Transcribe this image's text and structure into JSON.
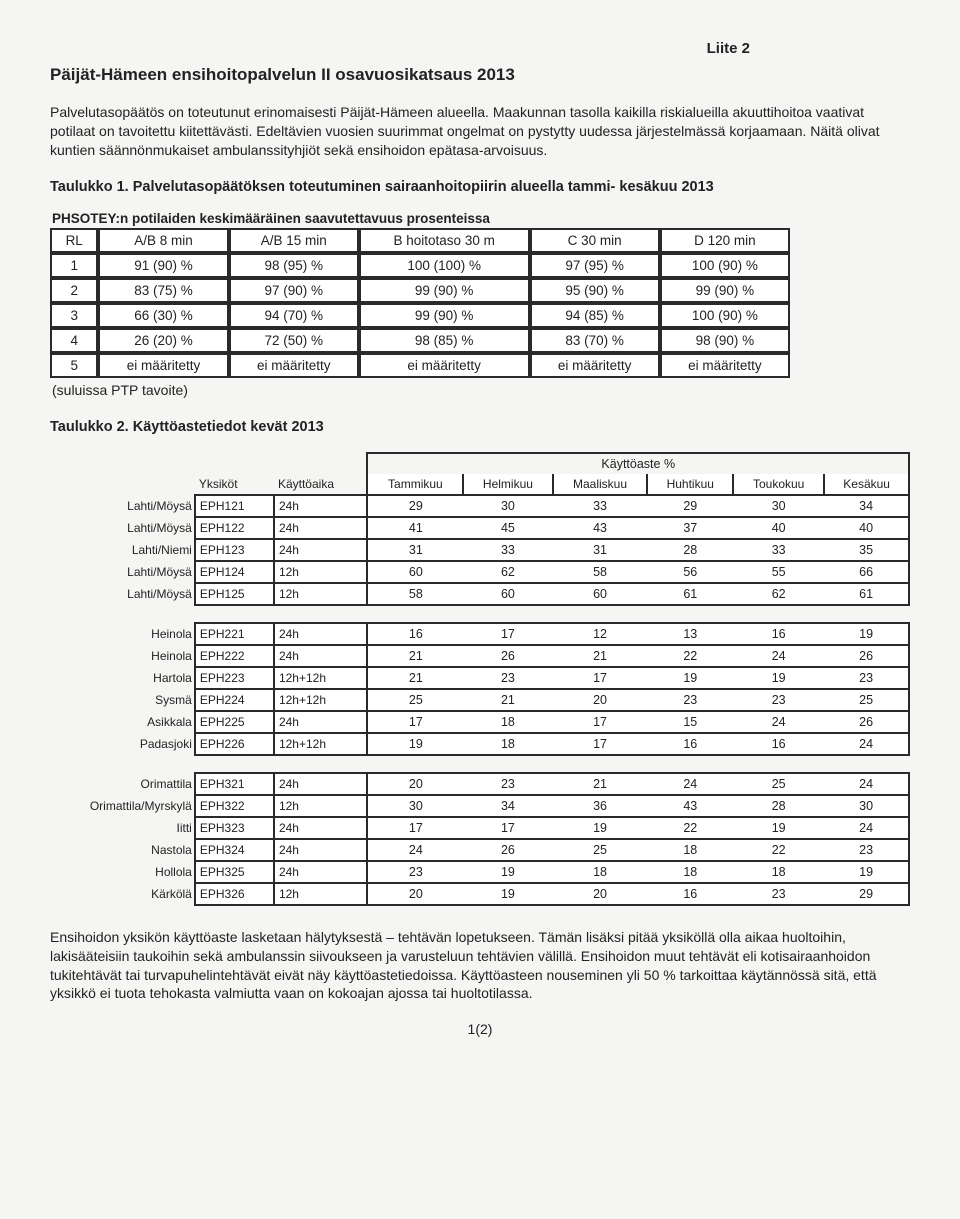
{
  "header_label": "Liite 2",
  "title": "Päijät-Hämeen ensihoitopalvelun II osavuosikatsaus 2013",
  "intro": "Palvelutasopäätös on toteutunut erinomaisesti Päijät-Hämeen alueella. Maakunnan tasolla kaikilla riskialueilla akuuttihoitoa vaativat potilaat on tavoitettu kiitettävästi. Edeltävien vuosien suurimmat ongelmat on pystytty uudessa järjestelmässä korjaamaan. Näitä olivat kuntien säännönmukaiset ambulanssityhjiöt sekä ensihoidon epätasa-arvoisuus.",
  "table1": {
    "caption": "Taulukko 1. Palvelutasopäätöksen toteutuminen sairaanhoitopiirin alueella tammi- kesäkuu 2013",
    "subcaption": "PHSOTEY:n potilaiden keskimääräinen saavutettavuus prosenteissa",
    "columns": [
      "RL",
      "A/B 8 min",
      "A/B 15 min",
      "B hoitotaso 30 m",
      "C 30 min",
      "D 120 min"
    ],
    "rows": [
      [
        "1",
        "91 (90) %",
        "98 (95) %",
        "100 (100) %",
        "97 (95) %",
        "100 (90) %"
      ],
      [
        "2",
        "83 (75) %",
        "97 (90) %",
        "99 (90) %",
        "95 (90) %",
        "99 (90) %"
      ],
      [
        "3",
        "66 (30) %",
        "94 (70) %",
        "99 (90) %",
        "94 (85) %",
        "100 (90) %"
      ],
      [
        "4",
        "26 (20) %",
        "72 (50) %",
        "98 (85) %",
        "83 (70) %",
        "98 (90) %"
      ],
      [
        "5",
        "ei määritetty",
        "ei määritetty",
        "ei määritetty",
        "ei määritetty",
        "ei määritetty"
      ]
    ],
    "note": "(suluissa PTP tavoite)"
  },
  "table2": {
    "caption": "Taulukko 2. Käyttöastetiedot kevät 2013",
    "group_header": "Käyttöaste %",
    "col_labels": [
      "Yksiköt",
      "Käyttöaika",
      "Tammikuu",
      "Helmikuu",
      "Maaliskuu",
      "Huhtikuu",
      "Toukokuu",
      "Kesäkuu"
    ],
    "groups": [
      [
        {
          "loc": "Lahti/Möysä",
          "unit": "EPH121",
          "time": "24h",
          "v": [
            "29",
            "30",
            "33",
            "29",
            "30",
            "34"
          ]
        },
        {
          "loc": "Lahti/Möysä",
          "unit": "EPH122",
          "time": "24h",
          "v": [
            "41",
            "45",
            "43",
            "37",
            "40",
            "40"
          ]
        },
        {
          "loc": "Lahti/Niemi",
          "unit": "EPH123",
          "time": "24h",
          "v": [
            "31",
            "33",
            "31",
            "28",
            "33",
            "35"
          ]
        },
        {
          "loc": "Lahti/Möysä",
          "unit": "EPH124",
          "time": "12h",
          "v": [
            "60",
            "62",
            "58",
            "56",
            "55",
            "66"
          ]
        },
        {
          "loc": "Lahti/Möysä",
          "unit": "EPH125",
          "time": "12h",
          "v": [
            "58",
            "60",
            "60",
            "61",
            "62",
            "61"
          ]
        }
      ],
      [
        {
          "loc": "Heinola",
          "unit": "EPH221",
          "time": "24h",
          "v": [
            "16",
            "17",
            "12",
            "13",
            "16",
            "19"
          ]
        },
        {
          "loc": "Heinola",
          "unit": "EPH222",
          "time": "24h",
          "v": [
            "21",
            "26",
            "21",
            "22",
            "24",
            "26"
          ]
        },
        {
          "loc": "Hartola",
          "unit": "EPH223",
          "time": "12h+12h",
          "v": [
            "21",
            "23",
            "17",
            "19",
            "19",
            "23"
          ]
        },
        {
          "loc": "Sysmä",
          "unit": "EPH224",
          "time": "12h+12h",
          "v": [
            "25",
            "21",
            "20",
            "23",
            "23",
            "25"
          ]
        },
        {
          "loc": "Asikkala",
          "unit": "EPH225",
          "time": "24h",
          "v": [
            "17",
            "18",
            "17",
            "15",
            "24",
            "26"
          ]
        },
        {
          "loc": "Padasjoki",
          "unit": "EPH226",
          "time": "12h+12h",
          "v": [
            "19",
            "18",
            "17",
            "16",
            "16",
            "24"
          ]
        }
      ],
      [
        {
          "loc": "Orimattila",
          "unit": "EPH321",
          "time": "24h",
          "v": [
            "20",
            "23",
            "21",
            "24",
            "25",
            "24"
          ]
        },
        {
          "loc": "Orimattila/Myrskylä",
          "unit": "EPH322",
          "time": "12h",
          "v": [
            "30",
            "34",
            "36",
            "43",
            "28",
            "30"
          ]
        },
        {
          "loc": "Iitti",
          "unit": "EPH323",
          "time": "24h",
          "v": [
            "17",
            "17",
            "19",
            "22",
            "19",
            "24"
          ]
        },
        {
          "loc": "Nastola",
          "unit": "EPH324",
          "time": "24h",
          "v": [
            "24",
            "26",
            "25",
            "18",
            "22",
            "23"
          ]
        },
        {
          "loc": "Hollola",
          "unit": "EPH325",
          "time": "24h",
          "v": [
            "23",
            "19",
            "18",
            "18",
            "18",
            "19"
          ]
        },
        {
          "loc": "Kärkölä",
          "unit": "EPH326",
          "time": "12h",
          "v": [
            "20",
            "19",
            "20",
            "16",
            "23",
            "29"
          ]
        }
      ]
    ]
  },
  "footer_text": "Ensihoidon yksikön käyttöaste lasketaan hälytyksestä – tehtävän lopetukseen. Tämän lisäksi pitää yksiköllä olla aikaa huoltoihin, lakisääteisiin taukoihin sekä ambulanssin siivoukseen ja varusteluun tehtävien välillä. Ensihoidon muut tehtävät eli kotisairaanhoidon tukitehtävät tai turvapuhelintehtävät eivät näy käyttöastetiedoissa. Käyttöasteen nouseminen yli 50 % tarkoittaa käytännössä sitä, että yksikkö ei tuota tehokasta valmiutta vaan on kokoajan ajossa tai huoltotilassa.",
  "page_number": "1(2)"
}
